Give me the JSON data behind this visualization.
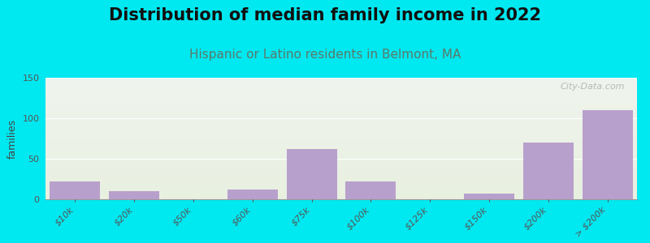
{
  "title": "Distribution of median family income in 2022",
  "subtitle": "Hispanic or Latino residents in Belmont, MA",
  "ylabel": "families",
  "categories": [
    "$10k",
    "$20k",
    "$50k",
    "$60k",
    "$75k",
    "$100k",
    "$125k",
    "$150k",
    "$200k",
    "> $200k"
  ],
  "values": [
    22,
    10,
    0,
    12,
    62,
    22,
    0,
    7,
    70,
    110
  ],
  "bar_color": "#b8a0cc",
  "background_outer": "#00e8f0",
  "background_plot_top": "#f0f4ee",
  "background_plot_bottom": "#e8f0e0",
  "ylim": [
    0,
    150
  ],
  "yticks": [
    0,
    50,
    100,
    150
  ],
  "watermark": "City-Data.com",
  "title_fontsize": 15,
  "subtitle_fontsize": 11,
  "subtitle_color": "#5a7a6a",
  "ylabel_fontsize": 9,
  "tick_label_fontsize": 8
}
